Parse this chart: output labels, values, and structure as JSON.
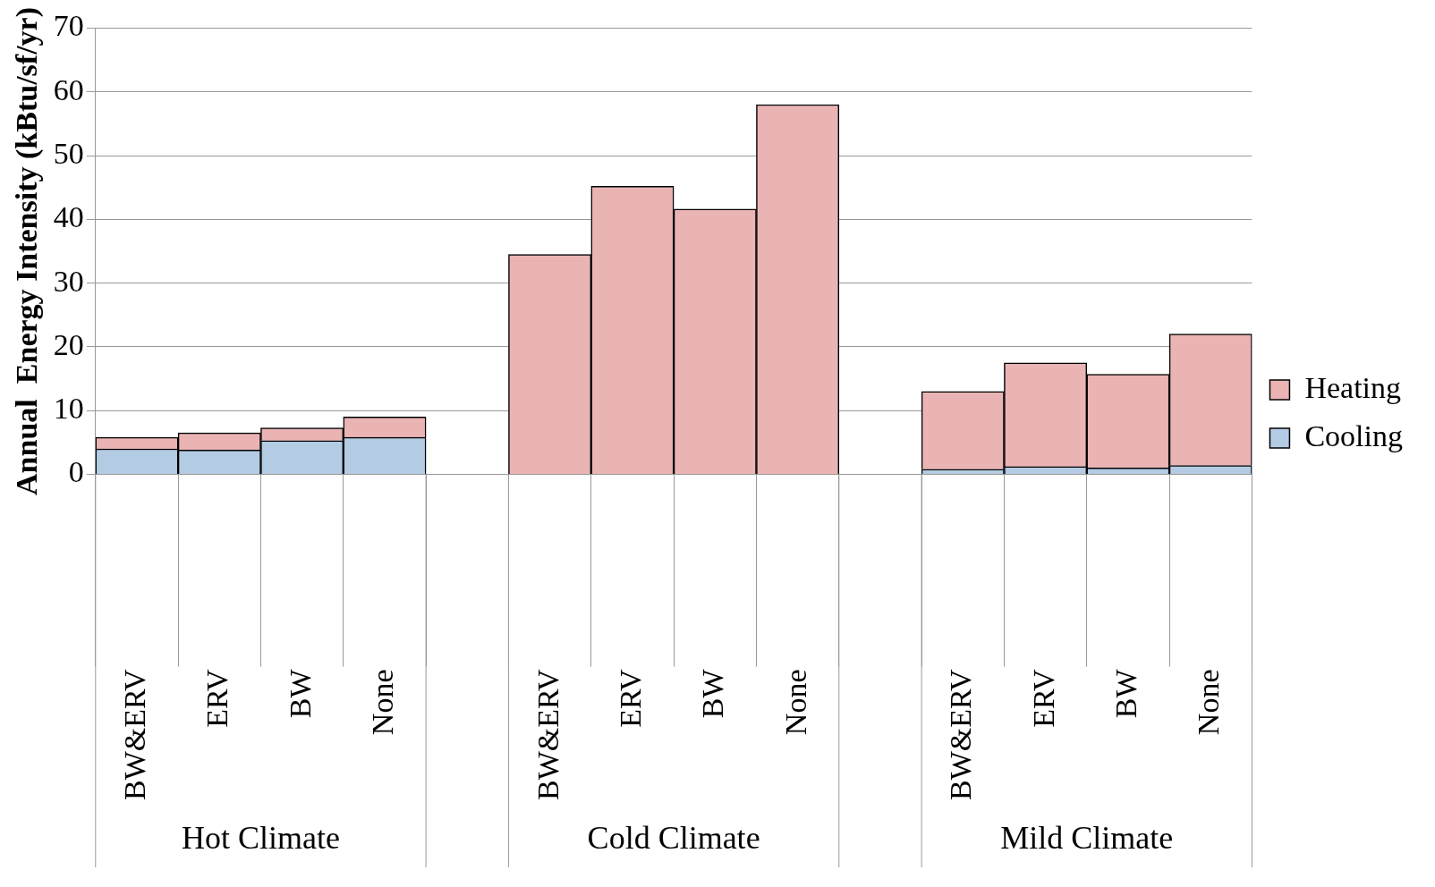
{
  "chart_data": {
    "type": "bar",
    "stacked": true,
    "ylabel": "Annual  Energy Intensity (kBtu/sf/yr)",
    "categories": [
      "BW&ERV",
      "ERV",
      "BW",
      "None",
      null,
      "BW&ERV",
      "ERV",
      "BW",
      "None",
      null,
      "BW&ERV",
      "ERV",
      "BW",
      "None"
    ],
    "series": [
      {
        "name": "Cooling",
        "color": "#b4cbe4",
        "values": [
          4.0,
          3.8,
          5.3,
          5.8,
          null,
          0,
          0,
          0,
          0,
          null,
          0.8,
          1.2,
          1.0,
          1.4
        ]
      },
      {
        "name": "Heating",
        "color": "#eab4b4",
        "values": [
          1.8,
          2.7,
          2.0,
          3.2,
          null,
          34.5,
          45.2,
          41.6,
          58.0,
          null,
          12.2,
          16.3,
          14.7,
          20.6
        ]
      }
    ],
    "ylim": [
      0,
      70
    ],
    "yticks": [
      0,
      10,
      20,
      30,
      40,
      50,
      60,
      70
    ],
    "grid": "y",
    "legend": "right",
    "annotations": [
      "Hot Climate",
      "Cold Climate",
      "Mild Climate"
    ]
  }
}
